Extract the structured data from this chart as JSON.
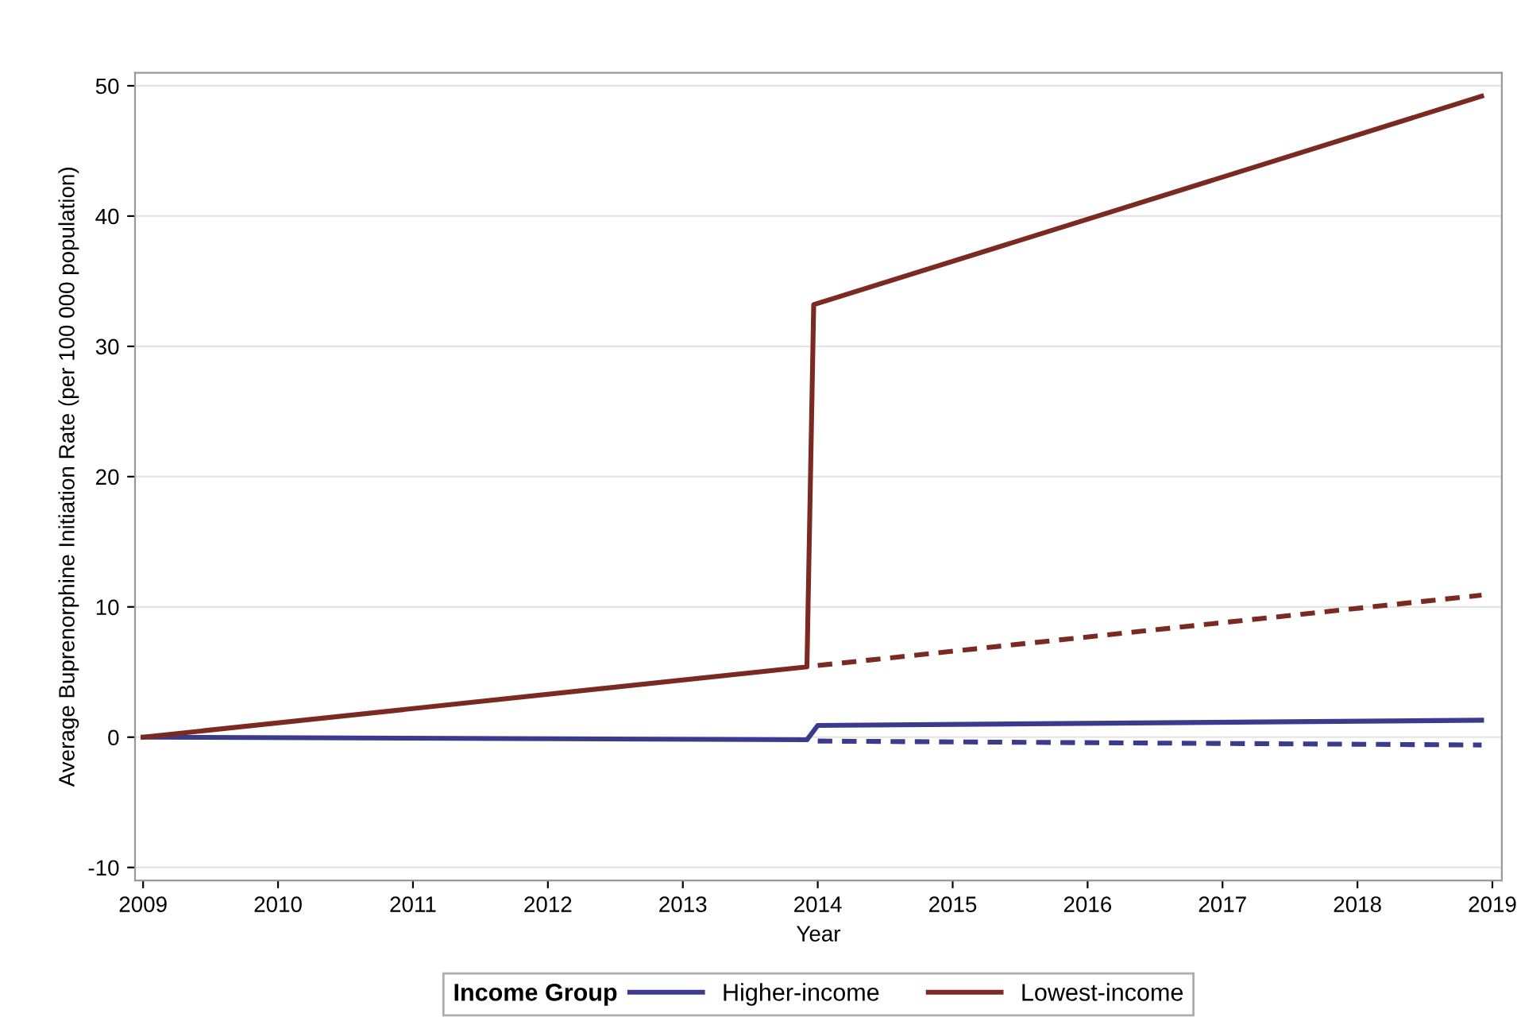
{
  "chart_data": {
    "type": "line",
    "xlabel": "Year",
    "ylabel": "Average Buprenorphine Initiation Rate (per 100 000 population)",
    "legend_title": "Income Group",
    "xlim": [
      2008.94,
      2019.07
    ],
    "ylim": [
      -11,
      51
    ],
    "xticks": [
      2009,
      2010,
      2011,
      2012,
      2013,
      2014,
      2015,
      2016,
      2017,
      2018,
      2019
    ],
    "yticks": [
      -10,
      0,
      10,
      20,
      30,
      40,
      50
    ],
    "grid": "y",
    "legend": "bottom",
    "marker": "none",
    "series": [
      {
        "name": "Higher-income",
        "color": "#3b3b8e",
        "line_style": "solid",
        "x": [
          2009,
          2013.92,
          2014,
          2018.92
        ],
        "values": [
          0,
          -0.2,
          0.9,
          1.3
        ]
      },
      {
        "name": "Lowest-income",
        "color": "#7b2a22",
        "line_style": "solid",
        "x": [
          2009,
          2013.92,
          2013.97,
          2018.92
        ],
        "values": [
          0,
          5.4,
          33.2,
          49.2
        ]
      },
      {
        "color": "#3b3b8e",
        "line_style": "dashed",
        "x": [
          2014,
          2018.92
        ],
        "values": [
          -0.3,
          -0.6
        ]
      },
      {
        "color": "#7b2a22",
        "line_style": "dashed",
        "x": [
          2014,
          2018.92
        ],
        "values": [
          5.5,
          10.9
        ]
      }
    ]
  }
}
